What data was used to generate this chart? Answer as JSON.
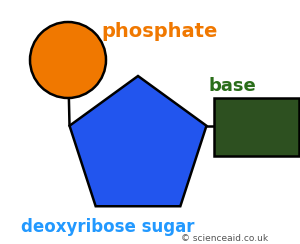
{
  "background_color": "#ffffff",
  "phosphate_color": "#f07800",
  "phosphate_label": "phosphate",
  "phosphate_label_color": "#f07800",
  "sugar_color": "#2255ee",
  "sugar_label": "deoxyribose sugar",
  "sugar_label_color": "#2299ff",
  "base_color": "#2d5020",
  "base_label": "base",
  "base_label_color": "#2a6e1a",
  "copyright": "© scienceaid.co.uk",
  "copyright_color": "#555555",
  "line_color": "#000000"
}
